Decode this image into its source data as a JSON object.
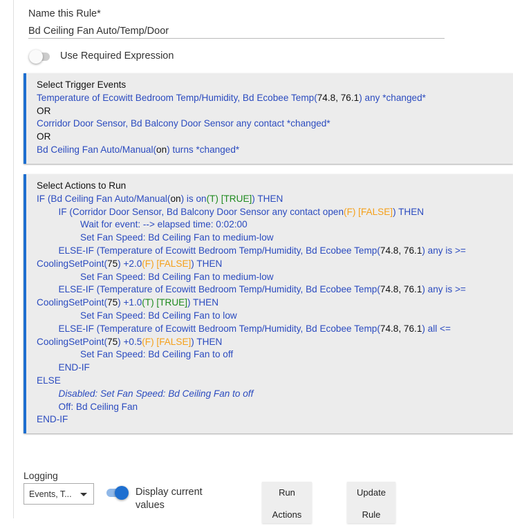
{
  "rule_name": {
    "label": "Name this Rule*",
    "value": "Bd Ceiling Fan Auto/Temp/Door"
  },
  "required_expression": {
    "label": "Use Required Expression",
    "enabled": false
  },
  "triggers": {
    "title": "Select Trigger Events",
    "lines": [
      {
        "indent": 0,
        "segs": [
          {
            "t": "Temperature of Ecowitt Bedroom Temp/Humidity, Bd Ecobee Temp(",
            "c": "b"
          },
          {
            "t": "74.8, 76.1",
            "c": "k"
          },
          {
            "t": ") any *changed*",
            "c": "b"
          }
        ]
      },
      {
        "indent": 0,
        "segs": [
          {
            "t": "OR",
            "c": "k"
          }
        ]
      },
      {
        "indent": 0,
        "segs": [
          {
            "t": "Corridor Door Sensor, Bd Balcony Door Sensor any contact *changed*",
            "c": "b"
          }
        ]
      },
      {
        "indent": 0,
        "segs": [
          {
            "t": "OR",
            "c": "k"
          }
        ]
      },
      {
        "indent": 0,
        "segs": [
          {
            "t": "Bd Ceiling Fan Auto/Manual(",
            "c": "b"
          },
          {
            "t": "on",
            "c": "k"
          },
          {
            "t": ") turns *changed*",
            "c": "b"
          }
        ]
      }
    ]
  },
  "actions": {
    "title": "Select Actions to Run",
    "lines": [
      {
        "indent": 0,
        "segs": [
          {
            "t": "IF (Bd Ceiling Fan Auto/Manual(",
            "c": "b"
          },
          {
            "t": "on",
            "c": "k"
          },
          {
            "t": ") is on",
            "c": "b"
          },
          {
            "t": "(T) [TRUE]",
            "c": "g"
          },
          {
            "t": ") THEN",
            "c": "b"
          }
        ]
      },
      {
        "indent": 1,
        "segs": [
          {
            "t": "IF (Corridor Door Sensor, Bd Balcony Door Sensor any contact open",
            "c": "b"
          },
          {
            "t": "(F) [FALSE]",
            "c": "o"
          },
          {
            "t": ") THEN",
            "c": "b"
          }
        ]
      },
      {
        "indent": 2,
        "segs": [
          {
            "t": "Wait for event:  --> elapsed time: 0:02:00",
            "c": "b"
          }
        ]
      },
      {
        "indent": 2,
        "segs": [
          {
            "t": "Set Fan Speed: Bd Ceiling Fan to medium-low",
            "c": "b"
          }
        ]
      },
      {
        "indent": 1,
        "segs": [
          {
            "t": "ELSE-IF (Temperature of Ecowitt Bedroom Temp/Humidity, Bd Ecobee Temp(",
            "c": "b"
          },
          {
            "t": "74.8, 76.1",
            "c": "k"
          },
          {
            "t": ") any is >=",
            "c": "b"
          }
        ]
      },
      {
        "indent": 0,
        "segs": [
          {
            "t": "CoolingSetPoint(",
            "c": "b"
          },
          {
            "t": "75",
            "c": "k"
          },
          {
            "t": ") +2.0",
            "c": "b"
          },
          {
            "t": "(F) [FALSE]",
            "c": "o"
          },
          {
            "t": ") THEN",
            "c": "b"
          }
        ]
      },
      {
        "indent": 2,
        "segs": [
          {
            "t": "Set Fan Speed: Bd Ceiling Fan to medium-low",
            "c": "b"
          }
        ]
      },
      {
        "indent": 1,
        "segs": [
          {
            "t": "ELSE-IF (Temperature of Ecowitt Bedroom Temp/Humidity, Bd Ecobee Temp(",
            "c": "b"
          },
          {
            "t": "74.8, 76.1",
            "c": "k"
          },
          {
            "t": ") any is >=",
            "c": "b"
          }
        ]
      },
      {
        "indent": 0,
        "segs": [
          {
            "t": "CoolingSetPoint(",
            "c": "b"
          },
          {
            "t": "75",
            "c": "k"
          },
          {
            "t": ") +1.0",
            "c": "b"
          },
          {
            "t": "(T) [TRUE]",
            "c": "g"
          },
          {
            "t": ") THEN",
            "c": "b"
          }
        ]
      },
      {
        "indent": 2,
        "segs": [
          {
            "t": "Set Fan Speed: Bd Ceiling Fan to low",
            "c": "b"
          }
        ]
      },
      {
        "indent": 1,
        "segs": [
          {
            "t": "ELSE-IF (Temperature of Ecowitt Bedroom Temp/Humidity, Bd Ecobee Temp(",
            "c": "b"
          },
          {
            "t": "74.8, 76.1",
            "c": "k"
          },
          {
            "t": ") all <=",
            "c": "b"
          }
        ]
      },
      {
        "indent": 0,
        "segs": [
          {
            "t": "CoolingSetPoint(",
            "c": "b"
          },
          {
            "t": "75",
            "c": "k"
          },
          {
            "t": ") +0.5",
            "c": "b"
          },
          {
            "t": "(F) [FALSE]",
            "c": "o"
          },
          {
            "t": ") THEN",
            "c": "b"
          }
        ]
      },
      {
        "indent": 2,
        "segs": [
          {
            "t": "Set Fan Speed: Bd Ceiling Fan to off",
            "c": "b"
          }
        ]
      },
      {
        "indent": 1,
        "segs": [
          {
            "t": "END-IF",
            "c": "b"
          }
        ]
      },
      {
        "indent": 0,
        "segs": [
          {
            "t": "ELSE",
            "c": "b"
          }
        ]
      },
      {
        "indent": 1,
        "segs": [
          {
            "t": "Disabled: Set Fan Speed: Bd Ceiling Fan to off",
            "c": "i"
          }
        ]
      },
      {
        "indent": 1,
        "segs": [
          {
            "t": "Off: Bd Ceiling Fan",
            "c": "b"
          }
        ]
      },
      {
        "indent": 0,
        "segs": [
          {
            "t": "END-IF",
            "c": "b"
          }
        ]
      }
    ]
  },
  "logging": {
    "label": "Logging",
    "selected": "Events, T..."
  },
  "display_current_values": {
    "label": "Display current values",
    "enabled": true
  },
  "buttons": {
    "run_actions": [
      "Run",
      "Actions"
    ],
    "update_rule": [
      "Update",
      "Rule"
    ]
  },
  "colors": {
    "accent": "#1e6fd0",
    "text_blue": "#2b4bbf",
    "false": "#f5a01a",
    "true": "#1e8a1e",
    "box_bg": "#ececec"
  }
}
